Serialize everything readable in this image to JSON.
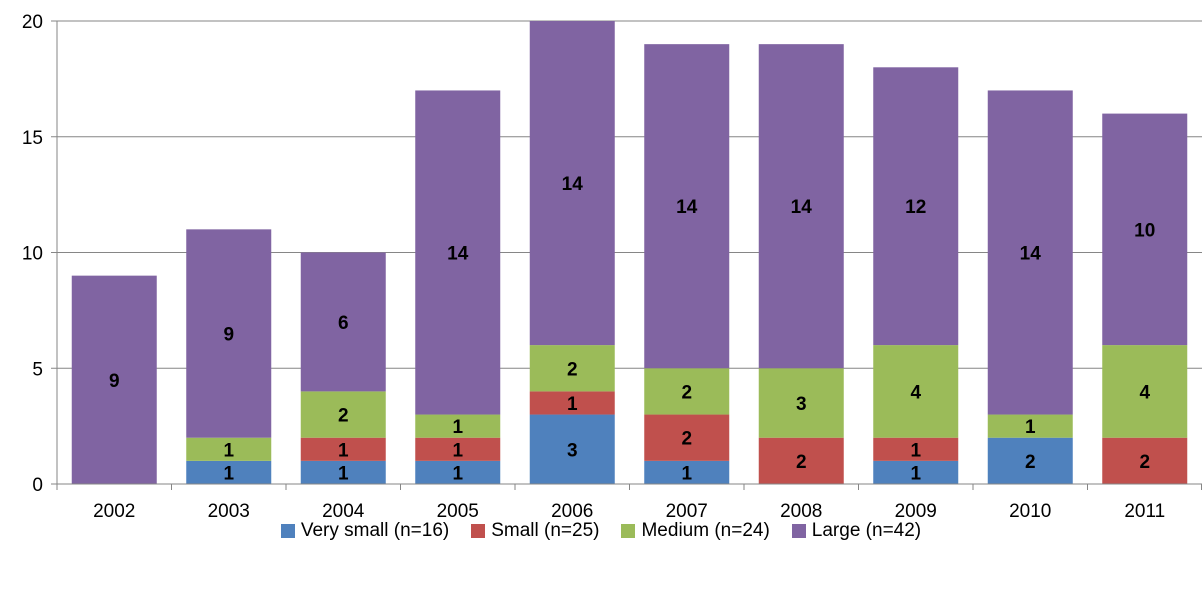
{
  "chart_data": {
    "type": "bar",
    "stacked": true,
    "categories": [
      "2002",
      "2003",
      "2004",
      "2005",
      "2006",
      "2007",
      "2008",
      "2009",
      "2010",
      "2011"
    ],
    "series": [
      {
        "name": "Very small (n=16)",
        "color": "#4F81BD",
        "values": [
          0,
          1,
          1,
          1,
          3,
          1,
          0,
          1,
          2,
          0
        ]
      },
      {
        "name": "Small (n=25)",
        "color": "#C0504D",
        "values": [
          0,
          0,
          1,
          1,
          1,
          2,
          2,
          1,
          0,
          2
        ]
      },
      {
        "name": "Medium (n=24)",
        "color": "#9BBB59",
        "values": [
          0,
          1,
          2,
          1,
          2,
          2,
          3,
          4,
          1,
          4
        ]
      },
      {
        "name": "Large (n=42)",
        "color": "#8064A2",
        "values": [
          9,
          9,
          6,
          14,
          14,
          14,
          14,
          12,
          14,
          10
        ]
      }
    ],
    "ylim": [
      0,
      20
    ],
    "yticks": [
      0,
      5,
      10,
      15,
      20
    ],
    "grid": true,
    "data_labels": true,
    "legend_position": "bottom"
  }
}
